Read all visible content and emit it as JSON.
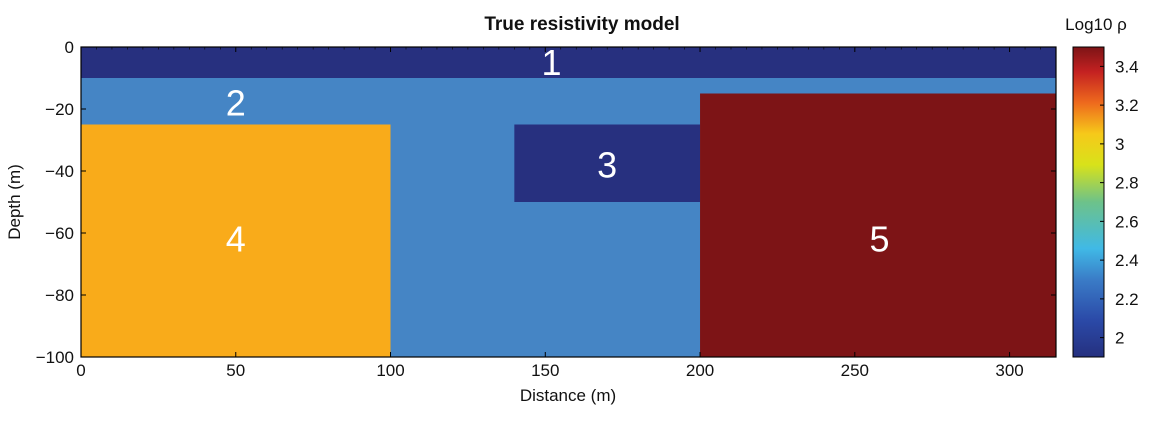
{
  "chart_data": {
    "type": "heatmap",
    "title": "True resistivity model",
    "xlabel": "Distance (m)",
    "ylabel": "Depth (m)",
    "xlim": [
      0,
      315
    ],
    "ylim": [
      -100,
      0
    ],
    "xticks": [
      0,
      50,
      100,
      150,
      200,
      250,
      300
    ],
    "yticks": [
      0,
      -20,
      -40,
      -60,
      -80,
      -100
    ],
    "xtick_labels": [
      "0",
      "50",
      "100",
      "150",
      "200",
      "250",
      "300"
    ],
    "ytick_labels": [
      "0",
      "−20",
      "−40",
      "−60",
      "−80",
      "−100"
    ],
    "regions": [
      {
        "label": "2",
        "x": [
          0,
          315
        ],
        "y": [
          -100,
          -10
        ],
        "log10_rho": 2.2
      },
      {
        "label": "1",
        "x": [
          0,
          315
        ],
        "y": [
          -10,
          0
        ],
        "log10_rho": 1.95
      },
      {
        "label": "4",
        "x": [
          0,
          100
        ],
        "y": [
          -100,
          -25
        ],
        "log10_rho": 3.0
      },
      {
        "label": "3",
        "x": [
          140,
          200
        ],
        "y": [
          -50,
          -25
        ],
        "log10_rho": 1.95
      },
      {
        "label": "5",
        "x": [
          200,
          315
        ],
        "y": [
          -100,
          -15
        ],
        "log10_rho": 3.5
      }
    ],
    "colorbar": {
      "title": "Log10 ρ",
      "range": [
        1.9,
        3.5
      ],
      "ticks": [
        2,
        2.2,
        2.4,
        2.6,
        2.8,
        3,
        3.2,
        3.4
      ],
      "tick_labels": [
        "2",
        "2.2",
        "2.4",
        "2.6",
        "2.8",
        "3",
        "3.2",
        "3.4"
      ],
      "colormap": "jet"
    },
    "colors": {
      "region_1": "#27307f",
      "region_2": "#4585c5",
      "region_3": "#27307f",
      "region_4": "#f9ab1a",
      "region_5": "#7d1416"
    }
  }
}
